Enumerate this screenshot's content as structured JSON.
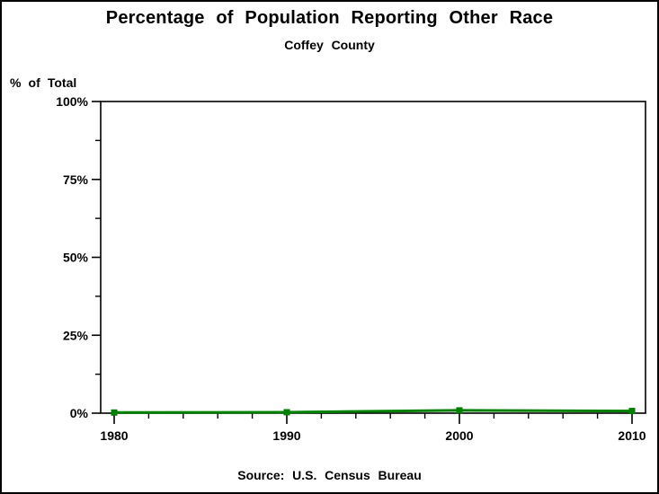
{
  "header": {
    "title": "Percentage of Population Reporting Other Race",
    "subtitle": "Coffey County"
  },
  "footer": {
    "source": "Source: U.S. Census Bureau"
  },
  "chart_data": {
    "type": "line",
    "title": "Percentage of Population Reporting Other Race",
    "subtitle": "Coffey County",
    "xlabel": "",
    "ylabel": "% of Total",
    "x": [
      1980,
      1990,
      2000,
      2010
    ],
    "values": [
      0.2,
      0.3,
      0.9,
      0.7
    ],
    "ylim": [
      0,
      100
    ],
    "xlim": [
      1980,
      2010
    ],
    "y_major_ticks": [
      0,
      25,
      50,
      75,
      100
    ],
    "y_tick_labels": [
      "0%",
      "25%",
      "50%",
      "75%",
      "100%"
    ],
    "y_minor_ticks": [
      12.5,
      37.5,
      62.5,
      87.5
    ],
    "x_major_ticks": [
      1980,
      1990,
      2000,
      2010
    ],
    "x_tick_labels": [
      "1980",
      "1990",
      "2000",
      "2010"
    ],
    "x_minor_step": 2,
    "grid": false,
    "legend": "none",
    "line_color": "#008000",
    "marker": "square",
    "axis_color": "#000000",
    "source": "Source: U.S. Census Bureau"
  }
}
